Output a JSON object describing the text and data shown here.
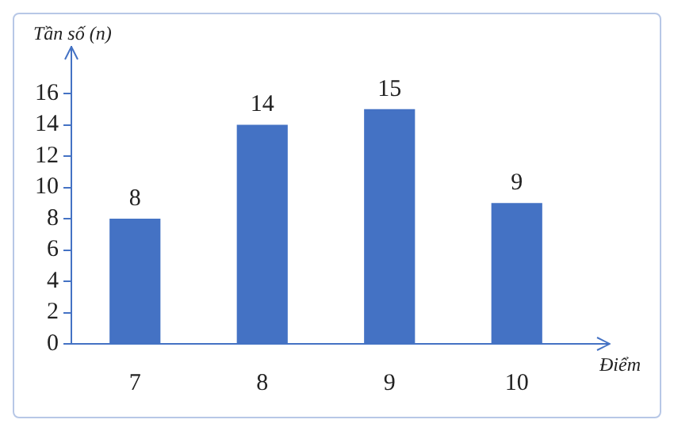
{
  "chart_data": {
    "type": "bar",
    "xlabel": "Điểm",
    "ylabel": "Tần số (n)",
    "categories": [
      "7",
      "8",
      "9",
      "10"
    ],
    "values": [
      8,
      14,
      15,
      9
    ],
    "color": "#4472c4",
    "ylim": [
      0,
      16
    ],
    "yticks": [
      0,
      2,
      4,
      6,
      8,
      10,
      12,
      14,
      16
    ],
    "data_labels": true,
    "grid": false,
    "legend": false
  }
}
